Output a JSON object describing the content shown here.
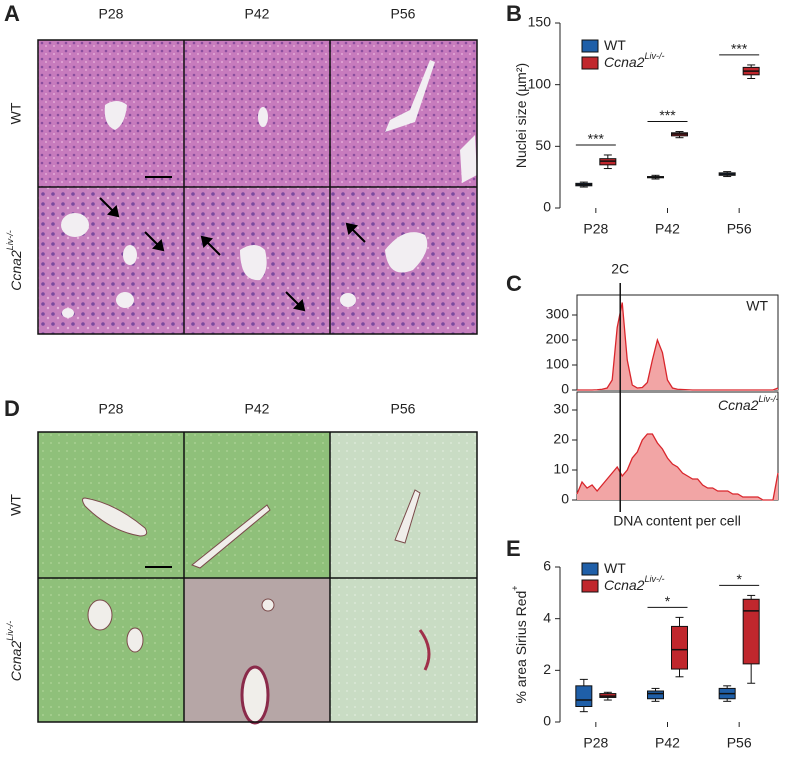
{
  "panel_A": {
    "label": "A",
    "columns": [
      "P28",
      "P42",
      "P56"
    ],
    "row_wt": "WT",
    "row_ko": "Ccna2",
    "row_ko_sup": "Liv-/-"
  },
  "panel_D": {
    "label": "D",
    "columns": [
      "P28",
      "P42",
      "P56"
    ],
    "row_wt": "WT",
    "row_ko": "Ccna2",
    "row_ko_sup": "Liv-/-"
  },
  "chart_data": [
    {
      "type": "box",
      "panel": "B",
      "y_label": "Nuclei size (µm²)",
      "categories": [
        "P28",
        "P42",
        "P56"
      ],
      "ylim": [
        0,
        150
      ],
      "yticks": [
        0,
        50,
        100,
        150
      ],
      "series": [
        {
          "name": "WT",
          "color": "#1f5fa8",
          "values": [
            [
              17,
              18,
              19,
              20,
              21
            ],
            [
              23.5,
              24.5,
              25,
              25.5,
              26.5
            ],
            [
              25.5,
              26.5,
              27.5,
              28.5,
              29.5
            ]
          ]
        },
        {
          "name": "Ccna2",
          "name_sup": "Liv-/-",
          "color": "#c0272d",
          "values": [
            [
              32,
              35,
              38,
              40,
              43
            ],
            [
              57,
              58.5,
              60,
              61,
              62
            ],
            [
              105,
              108,
              111,
              114,
              116
            ]
          ]
        }
      ],
      "significance": [
        "***",
        "***",
        "***"
      ]
    },
    {
      "type": "histogram-area",
      "panel": "C",
      "annotation": "2C",
      "annotation_x": 8.6,
      "label": "WT",
      "x": [
        0,
        1,
        2,
        3,
        4,
        5,
        6,
        7,
        8,
        9,
        10,
        11,
        12,
        13,
        14,
        15,
        16,
        17,
        18,
        19,
        20,
        21,
        22,
        23,
        24,
        25,
        26,
        27,
        28,
        29,
        30,
        31,
        32,
        33,
        34,
        35,
        36,
        37,
        38,
        39,
        40
      ],
      "values": [
        0,
        0,
        0,
        0,
        1,
        3,
        8,
        40,
        250,
        350,
        120,
        20,
        8,
        10,
        30,
        120,
        200,
        150,
        40,
        8,
        3,
        2,
        1,
        0,
        0,
        0,
        0,
        0,
        0,
        0,
        0,
        0,
        0,
        0,
        0,
        0,
        0,
        0,
        0,
        0,
        8
      ],
      "xlim": [
        0,
        40
      ],
      "ylim": [
        0,
        380
      ],
      "yticks": [
        0,
        100,
        200,
        300
      ],
      "color": "#d9262c"
    },
    {
      "type": "histogram-area",
      "label": "Ccna2",
      "label_sup": "Liv-/-",
      "x_label": "DNA content per cell",
      "x": [
        0,
        1,
        2,
        3,
        4,
        5,
        6,
        7,
        8,
        9,
        10,
        11,
        12,
        13,
        14,
        15,
        16,
        17,
        18,
        19,
        20,
        21,
        22,
        23,
        24,
        25,
        26,
        27,
        28,
        29,
        30,
        31,
        32,
        33,
        34,
        35,
        36,
        37,
        38,
        39,
        40
      ],
      "values": [
        2,
        6,
        4,
        5,
        3,
        5,
        7,
        9,
        11,
        8,
        10,
        14,
        16,
        20,
        22,
        22,
        19,
        17,
        14,
        12,
        11,
        9,
        8,
        7,
        7,
        5,
        4,
        4,
        3,
        3,
        3,
        2,
        2,
        1,
        1,
        1,
        1,
        0,
        0,
        0,
        9
      ],
      "xlim": [
        0,
        40
      ],
      "ylim": [
        0,
        36
      ],
      "yticks": [
        0,
        10,
        20,
        30
      ],
      "color": "#d9262c"
    },
    {
      "type": "box",
      "panel": "E",
      "y_label": "% area Sirius Red",
      "y_label_sup": "+",
      "categories": [
        "P28",
        "P42",
        "P56"
      ],
      "ylim": [
        0,
        6
      ],
      "yticks": [
        0,
        2,
        4,
        6
      ],
      "series": [
        {
          "name": "WT",
          "color": "#1f5fa8",
          "values": [
            [
              0.4,
              0.6,
              0.85,
              1.4,
              1.65
            ],
            [
              0.8,
              0.9,
              1.1,
              1.2,
              1.3
            ],
            [
              0.8,
              0.9,
              1.1,
              1.3,
              1.4
            ]
          ]
        },
        {
          "name": "Ccna2",
          "name_sup": "Liv-/-",
          "color": "#c0272d",
          "values": [
            [
              0.85,
              0.95,
              1.0,
              1.1,
              1.15
            ],
            [
              1.75,
              2.05,
              2.8,
              3.7,
              4.05
            ],
            [
              1.5,
              2.25,
              4.3,
              4.75,
              4.9
            ]
          ]
        }
      ],
      "significance": [
        null,
        "*",
        "*"
      ]
    }
  ]
}
